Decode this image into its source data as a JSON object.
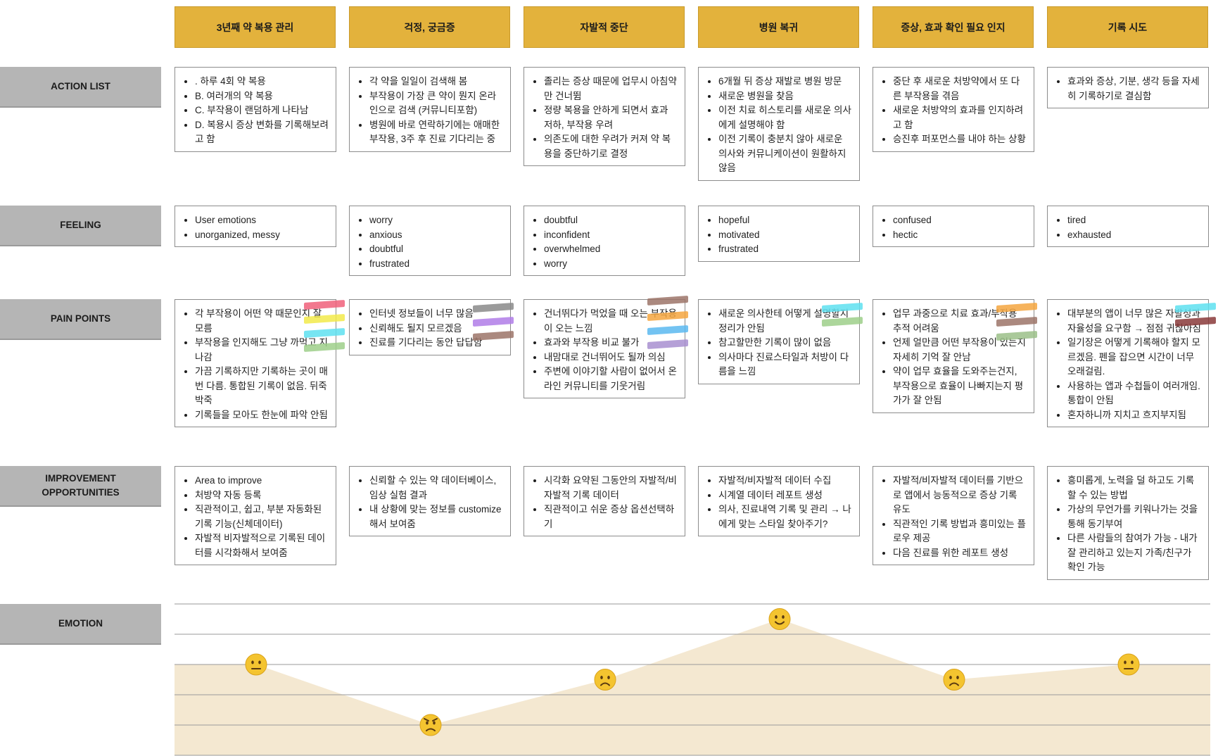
{
  "stages": [
    "3년째 약 복용 관리",
    "걱정, 궁금증",
    "자발적 중단",
    "병원 복귀",
    "증상, 효과 확인 필요 인지",
    "기록 시도"
  ],
  "rows": {
    "action": {
      "label": "ACTION LIST",
      "cards": [
        [
          ". 하루 4회 약 복용",
          "B. 여러개의 약 복용",
          "C. 부작용이 랜덤하게 나타남",
          "D. 복용시 증상 변화를 기록해보려고 함"
        ],
        [
          "각 약을 일일이 검색해 봄",
          "부작용이 가장 큰 약이 뭔지 온라인으로 검색 (커뮤니티포함)",
          "병원에 바로 연락하기에는 애매한 부작용, 3주  후 진료 기다리는 중"
        ],
        [
          "졸리는 증상 때문에 업무시 아침약만 건너뜀",
          "정량 복용을 안하게 되면서 효과 저하, 부작용 우려",
          "의존도에 대한 우려가 커져 약 복용을 중단하기로 결정"
        ],
        [
          "6개월 뒤 증상 재발로 병원 방문",
          "새로운 병원을 찾음",
          "이전 치료 히스토리를 새로운 의사에게 설명해야 함",
          "이전 기록이 충분치 않아 새로운 의사와 커뮤니케이션이 원활하지 않음"
        ],
        [
          "중단 후 새로운 처방약에서 또 다른 부작용을 겪음",
          "새로운 처방약의 효과를 인지하려고 함",
          "승진후 퍼포먼스를 내야 하는 상황"
        ],
        [
          "효과와 증상, 기분, 생각 등을 자세히 기록하기로 결심함"
        ]
      ]
    },
    "feeling": {
      "label": "FEELING",
      "cards": [
        [
          "User emotions",
          "unorganized, messy"
        ],
        [
          "worry",
          "anxious",
          "doubtful",
          "frustrated"
        ],
        [
          "doubtful",
          "inconfident",
          "overwhelmed",
          "worry"
        ],
        [
          "hopeful",
          "motivated",
          "frustrated"
        ],
        [
          "confused",
          "hectic"
        ],
        [
          "tired",
          "exhausted"
        ]
      ]
    },
    "pain": {
      "label": "PAIN POINTS",
      "cards": [
        [
          "각 부작용이 어떤 약 때문인지 잘 모름",
          "부작용을 인지해도 그냥 까먹고 지나감",
          "가끔 기록하지만 기록하는 곳이 매번 다름. 통합된 기록이 없음. 뒤죽박죽",
          "기록들을 모아도 한눈에 파악 안됨"
        ],
        [
          "인터넷 정보들이 너무 많음",
          "신뢰해도 될지 모르겠음",
          "진료를 기다리는 동안 답답함"
        ],
        [
          "건너뛰다가 먹었을 때 오는 부작용이 오는 느낌",
          "효과와 부작용 비교 불가",
          "내맘대로 건너뛰어도 될까 의심",
          "주변에 이야기할 사람이 없어서 온라인 커뮤니티를 기웃거림"
        ],
        [
          "새로운 의사한테 어떻게 설명할지 정리가 안됨",
          "참고할만한 기록이 많이 없음",
          "의사마다 진료스타일과 처방이 다름을 느낌"
        ],
        [
          "업무 과중으로 치료 효과/부작용 추적 어려움",
          "언제 얼만큼 어떤 부작용이 있는지 자세히 기억 잘 안남",
          "약이 업무 효율을 도와주는건지, 부작용으로 효율이 나빠지는지 평가가 잘 안됨"
        ],
        [
          "대부분의 앱이 너무 많은 자발성과 자율성을 요구함 → 점점 귀찮아짐",
          "일기장은 어떻게 기록해야 할지 모르겠음. 펜을 잡으면 시간이 너무 오래걸림.",
          "사용하는 앱과 수첩들이 여러개임. 통합이 안됨",
          "혼자하니까 지치고 흐지부지됨"
        ]
      ]
    },
    "improve": {
      "label": "IMPROVEMENT OPPORTUNITIES",
      "cards": [
        [
          "Area to improve",
          "처방약 자동 등록",
          "직관적이고, 쉽고, 부분 자동화된 기록 기능(신체데이터)",
          "자발적 비자발적으로 기록된 데이터를 시각화해서 보여줌"
        ],
        [
          "신뢰할 수 있는 약 데이터베이스, 임상 실험 결과",
          "내 상황에 맞는 정보를 customize해서 보여줌"
        ],
        [
          "시각화 요약된 그동안의 자발적/비자발적 기록 데이터",
          "직관적이고 쉬운 증상 옵션선택하기"
        ],
        [
          "자발적/비자발적 데이터 수집",
          "시계열 데이터 레포트 생성",
          "의사, 진료내역 기록 및 관리 → 나에게 맞는 스타일 찾아주기?"
        ],
        [
          "자발적/비자발적 데이터를 기반으로 앱에서 능동적으로 증상 기록 유도",
          "직관적인 기록 방법과 흥미있는 플로우 제공",
          "다음 진료를 위한 레포트 생성"
        ],
        [
          "흥미롭게, 노력을 덜 하고도 기록할 수 있는 방법",
          "가상의 무언가를 키워나가는 것을 통해 동기부여",
          "다른 사람들의 참여가 가능 - 내가 잘 관리하고 있는지 가족/친구가 확인 가능"
        ]
      ]
    },
    "emotion": {
      "label": "EMOTION"
    }
  },
  "emotion_curve": {
    "levels": [
      {
        "stage": "3년째 약 복용 관리",
        "mood": "neutral",
        "level": 3
      },
      {
        "stage": "걱정, 궁금증",
        "mood": "angry",
        "level": 1
      },
      {
        "stage": "자발적 중단",
        "mood": "sad",
        "level": 2.5
      },
      {
        "stage": "병원 복귀",
        "mood": "happy",
        "level": 4.5
      },
      {
        "stage": "증상, 효과 확인 필요 인지",
        "mood": "sad",
        "level": 2.5
      },
      {
        "stage": "기록 시도",
        "mood": "neutral",
        "level": 3
      }
    ],
    "fill_color": "#f3e6cc",
    "face_color": "#f4c430"
  },
  "sticky_flag_colors": [
    "#f0607a",
    "#f2ea4a",
    "#5ee0f0",
    "#9ecf8a",
    "#8a8a8a",
    "#b07de8",
    "#9c7468",
    "#f4a640",
    "#5ab8f0",
    "#a88fd0",
    "#8a3a3a",
    "#9bbf88"
  ]
}
